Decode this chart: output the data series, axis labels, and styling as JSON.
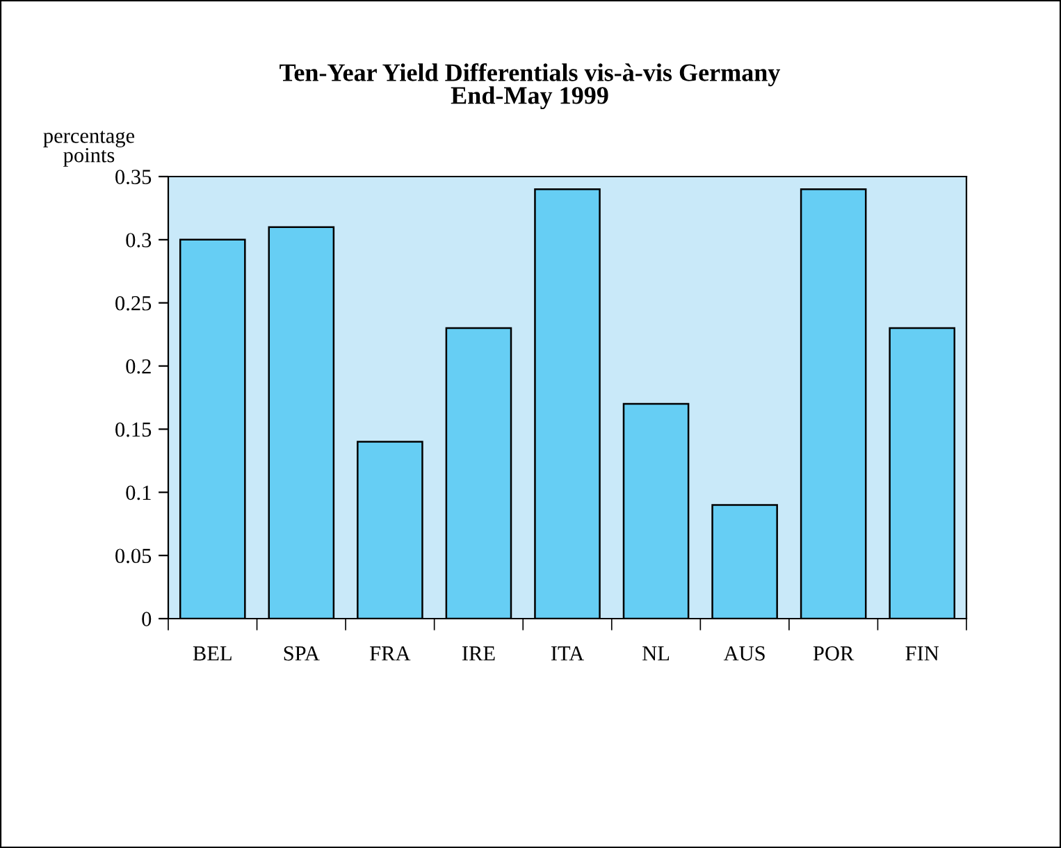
{
  "chart_data": {
    "type": "bar",
    "title": "Ten-Year Yield Differentials vis-à-vis Germany\nEnd-May 1999",
    "ylabel": "percentage\npoints",
    "categories": [
      "BEL",
      "SPA",
      "FRA",
      "IRE",
      "ITA",
      "NL",
      "AUS",
      "POR",
      "FIN"
    ],
    "values": [
      0.3,
      0.31,
      0.14,
      0.23,
      0.34,
      0.17,
      0.09,
      0.34,
      0.23
    ],
    "color": "#66cef4",
    "ylim": [
      0,
      0.35
    ],
    "yticks": [
      0,
      0.05,
      0.1,
      0.15,
      0.2,
      0.25,
      0.3,
      0.35
    ],
    "grid": false,
    "legend": false
  }
}
